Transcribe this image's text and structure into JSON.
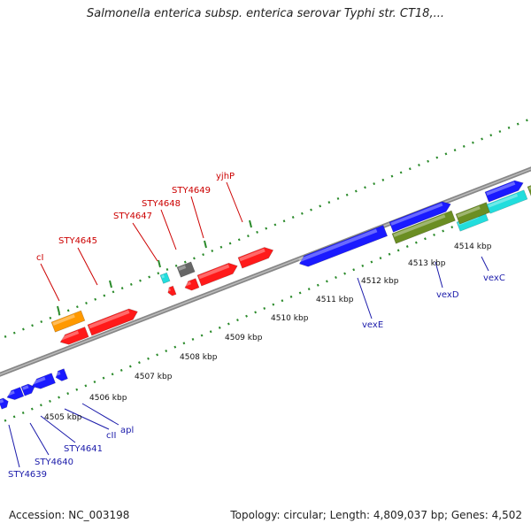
{
  "title": "Salmonella enterica subsp. enterica serovar Typhi str. CT18,...",
  "footer": {
    "accession": "Accession: NC_003198",
    "topology": "Topology: circular; Length: 4,809,037 bp; Genes: 4,502"
  },
  "colors": {
    "backbone": "#888888",
    "tick_dots": "#2a8a2a",
    "label_red": "#cc0000",
    "label_blue": "#1a1aaa",
    "gene_red": "#ff1a1a",
    "gene_blue": "#1a1aff",
    "gene_orange": "#ff9900",
    "gene_cyan": "#22dddd",
    "gene_olive": "#6b8e23",
    "gene_gray": "#666666"
  },
  "tick_labels": [
    "4505 kbp",
    "4506 kbp",
    "4507 kbp",
    "4508 kbp",
    "4509 kbp",
    "4510 kbp",
    "4511 kbp",
    "4512 kbp",
    "4513 kbp",
    "4514 kbp"
  ],
  "gene_labels_top": [
    "cI",
    "STY4645",
    "STY4647",
    "STY4648",
    "STY4649",
    "yjhP"
  ],
  "gene_labels_bottom": [
    "STY4639",
    "STY4640",
    "STY4641",
    "cII",
    "apl",
    "vexE",
    "vexD",
    "vexC"
  ]
}
